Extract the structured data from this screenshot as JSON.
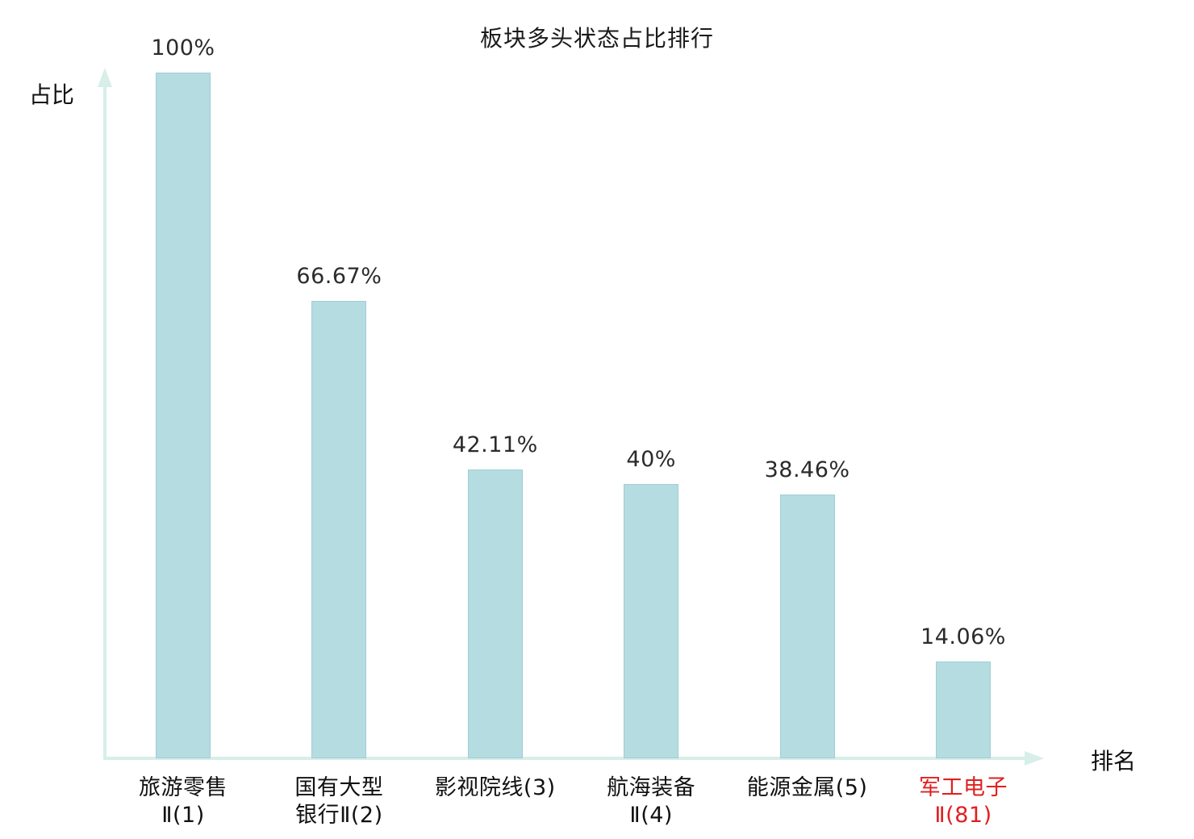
{
  "title": "板块多头状态占比排行",
  "axes": {
    "y_label": "占比",
    "x_label": "排名"
  },
  "colors": {
    "bar_fill": "#b5dce1",
    "bar_border": "#9fced5",
    "axis": "#d7eee9",
    "text": "#1a1a1a",
    "highlight_text": "#e02020"
  },
  "chart_data": {
    "type": "bar",
    "title": "板块多头状态占比排行",
    "xlabel": "排名",
    "ylabel": "占比",
    "ylim": [
      0,
      100
    ],
    "grid": false,
    "legend": "none",
    "categories": [
      "旅游零售Ⅱ(1)",
      "国有大型银行Ⅱ(2)",
      "影视院线(3)",
      "航海装备Ⅱ(4)",
      "能源金属(5)",
      "军工电子Ⅱ(81)"
    ],
    "values": [
      100,
      66.67,
      42.11,
      40,
      38.46,
      14.06
    ],
    "items": [
      {
        "label_lines": [
          "旅游零售",
          "Ⅱ(1)"
        ],
        "value": 100,
        "value_label": "100%",
        "highlight": false
      },
      {
        "label_lines": [
          "国有大型",
          "银行Ⅱ(2)"
        ],
        "value": 66.67,
        "value_label": "66.67%",
        "highlight": false
      },
      {
        "label_lines": [
          "影视院线(3)"
        ],
        "value": 42.11,
        "value_label": "42.11%",
        "highlight": false
      },
      {
        "label_lines": [
          "航海装备",
          "Ⅱ(4)"
        ],
        "value": 40,
        "value_label": "40%",
        "highlight": false
      },
      {
        "label_lines": [
          "能源金属(5)"
        ],
        "value": 38.46,
        "value_label": "38.46%",
        "highlight": false
      },
      {
        "label_lines": [
          "军工电子",
          "Ⅱ(81)"
        ],
        "value": 14.06,
        "value_label": "14.06%",
        "highlight": true
      }
    ]
  }
}
